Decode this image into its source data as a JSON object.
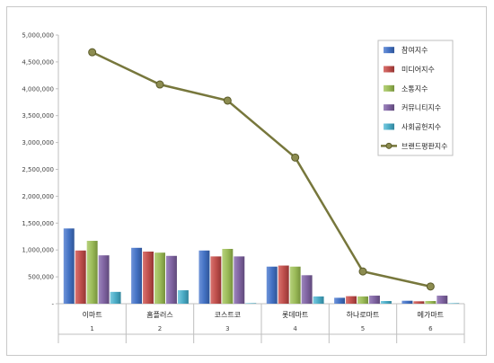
{
  "chart_data": {
    "type": "bar",
    "categories": [
      "이마트",
      "홈플러스",
      "코스트코",
      "롯데마트",
      "하나로마트",
      "메가마트"
    ],
    "category_index": [
      "1",
      "2",
      "3",
      "4",
      "5",
      "6"
    ],
    "ylim": [
      0,
      5000000
    ],
    "ytick_labels": [
      "-",
      "500,000",
      "1,000,000",
      "1,500,000",
      "2,000,000",
      "2,500,000",
      "3,000,000",
      "3,500,000",
      "4,000,000",
      "4,500,000",
      "5,000,000"
    ],
    "grid": false,
    "legend_position": "top-right",
    "series": [
      {
        "name": "참여지수",
        "type": "bar",
        "color": "#4472c4",
        "values": [
          1400000,
          1040000,
          990000,
          690000,
          110000,
          55000
        ]
      },
      {
        "name": "미디어지수",
        "type": "bar",
        "color": "#c0504d",
        "values": [
          990000,
          970000,
          880000,
          710000,
          140000,
          45000
        ]
      },
      {
        "name": "소통지수",
        "type": "bar",
        "color": "#9bbb59",
        "values": [
          1170000,
          950000,
          1020000,
          690000,
          135000,
          50000
        ]
      },
      {
        "name": "커뮤니티지수",
        "type": "bar",
        "color": "#8064a2",
        "values": [
          900000,
          890000,
          880000,
          530000,
          150000,
          150000
        ]
      },
      {
        "name": "사회공헌지수",
        "type": "bar",
        "color": "#4bacc6",
        "values": [
          220000,
          250000,
          10000,
          135000,
          50000,
          10000
        ]
      },
      {
        "name": "브랜드평판지수",
        "type": "line",
        "color": "#77773c",
        "values": [
          4680000,
          4080000,
          3780000,
          2720000,
          600000,
          320000
        ]
      }
    ]
  }
}
